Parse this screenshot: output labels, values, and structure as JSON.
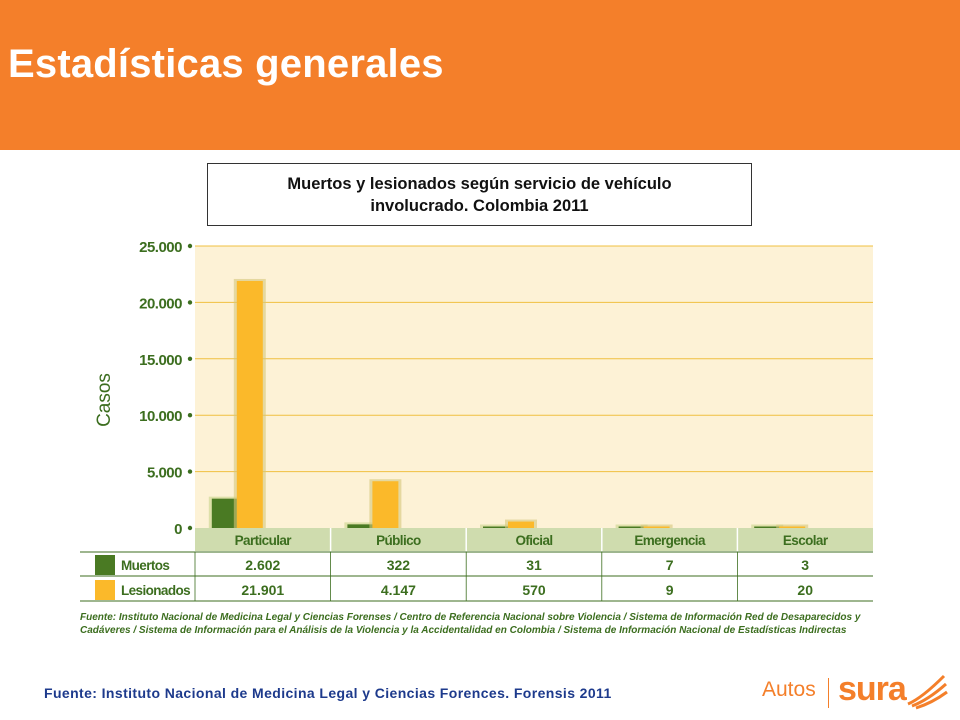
{
  "header": {
    "title": "Estadísticas generales"
  },
  "chart_title": "Muertos y lesionados según servicio de vehículo involucrado. Colombia 2011",
  "chart_data": {
    "type": "bar",
    "title": "Muertos y lesionados según servicio de vehículo involucrado. Colombia 2011",
    "ylabel": "Casos",
    "xlabel": "",
    "ylim": [
      0,
      25000
    ],
    "yticks": [
      "25.000",
      "20.000",
      "15.000",
      "10.000",
      "5.000",
      "0"
    ],
    "ytick_values": [
      25000,
      20000,
      15000,
      10000,
      5000,
      0
    ],
    "categories": [
      "Particular",
      "Público",
      "Oficial",
      "Emergencia",
      "Escolar"
    ],
    "series": [
      {
        "name": "Muertos",
        "values": [
          2602,
          322,
          31,
          7,
          3
        ],
        "labels": [
          "2.602",
          "322",
          "31",
          "7",
          "3"
        ],
        "color": "#4a7a23"
      },
      {
        "name": "Lesionados",
        "values": [
          21901,
          4147,
          570,
          9,
          20
        ],
        "labels": [
          "21.901",
          "4.147",
          "570",
          "9",
          "20"
        ],
        "color": "#fbb92a"
      }
    ],
    "grid": true,
    "legend": "table-below"
  },
  "colors": {
    "header": "#f47f2a",
    "plot_bg": "#fdf2d6",
    "grid": "#f0c040",
    "category_band": "#cfdcae",
    "text_green": "#3c6e1f"
  },
  "figure_source": "Fuente: Instituto Nacional de Medicina Legal y Ciencias Forenses / Centro de Referencia Nacional sobre Violencia / Sistema de Información Red de Desaparecidos y Cadáveres / Sistema de Información para el Análisis de la Violencia y la Accidentalidad en Colombia / Sistema de Información Nacional de Estadísticas Indirectas",
  "footer": {
    "source": "Fuente: Instituto Nacional de Medicina Legal y Ciencias Forences. Forensis 2011",
    "logo_autos": "Autos",
    "logo_sura": "sura",
    "logo_icon": "sura-wing-icon"
  }
}
